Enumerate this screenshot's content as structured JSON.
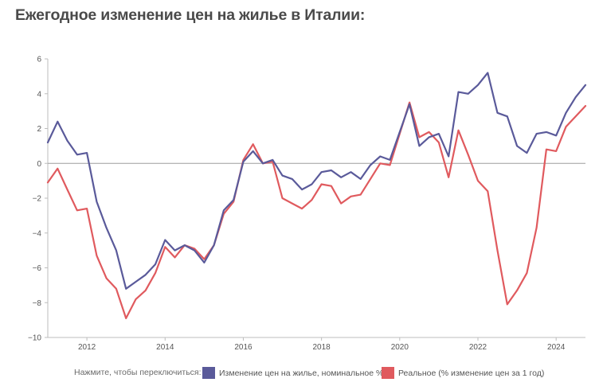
{
  "title": "Ежегодное изменение цен на жилье в Италии:",
  "legend": {
    "prompt": "Нажмите, чтобы переключиться:",
    "items": [
      {
        "label": "Изменение цен на жилье, номинальное %",
        "color": "#5a5a9a"
      },
      {
        "label": "Реальное (% изменение цен за 1 год)",
        "color": "#e05a5e"
      }
    ]
  },
  "chart_data": {
    "type": "line",
    "x_ticks": [
      "2012",
      "2014",
      "2016",
      "2018",
      "2020",
      "2022",
      "2024"
    ],
    "ylim": [
      -10,
      6
    ],
    "y_ticks": [
      "6",
      "4",
      "2",
      "0",
      "−2",
      "−4",
      "−6",
      "−8",
      "−10"
    ],
    "x_range": [
      2011.0,
      2024.75
    ],
    "series": [
      {
        "name": "Изменение цен на жилье, номинальное %",
        "color": "#5a5a9a",
        "x": [
          2011.0,
          2011.25,
          2011.5,
          2011.75,
          2012.0,
          2012.25,
          2012.5,
          2012.75,
          2013.0,
          2013.25,
          2013.5,
          2013.75,
          2014.0,
          2014.25,
          2014.5,
          2014.75,
          2015.0,
          2015.25,
          2015.5,
          2015.75,
          2016.0,
          2016.25,
          2016.5,
          2016.75,
          2017.0,
          2017.25,
          2017.5,
          2017.75,
          2018.0,
          2018.25,
          2018.5,
          2018.75,
          2019.0,
          2019.25,
          2019.5,
          2019.75,
          2020.0,
          2020.25,
          2020.5,
          2020.75,
          2021.0,
          2021.25,
          2021.5,
          2021.75,
          2022.0,
          2022.25,
          2022.5,
          2022.75,
          2023.0,
          2023.25,
          2023.5,
          2023.75,
          2024.0,
          2024.25,
          2024.5,
          2024.75
        ],
        "values": [
          1.2,
          2.4,
          1.3,
          0.5,
          0.6,
          -2.2,
          -3.7,
          -5.0,
          -7.2,
          -6.8,
          -6.4,
          -5.8,
          -4.4,
          -5.0,
          -4.7,
          -5.0,
          -5.7,
          -4.7,
          -2.7,
          -2.1,
          0.1,
          0.7,
          0.0,
          0.2,
          -0.7,
          -0.9,
          -1.5,
          -1.2,
          -0.5,
          -0.4,
          -0.8,
          -0.5,
          -0.9,
          -0.1,
          0.4,
          0.2,
          1.8,
          3.4,
          1.0,
          1.5,
          1.7,
          0.4,
          4.1,
          4.0,
          4.5,
          5.2,
          2.9,
          2.7,
          1.0,
          0.6,
          1.7,
          1.8,
          1.6,
          2.9,
          3.8,
          4.5
        ]
      },
      {
        "name": "Реальное (% изменение цен за 1 год)",
        "color": "#e05a5e",
        "x": [
          2011.0,
          2011.25,
          2011.5,
          2011.75,
          2012.0,
          2012.25,
          2012.5,
          2012.75,
          2013.0,
          2013.25,
          2013.5,
          2013.75,
          2014.0,
          2014.25,
          2014.5,
          2014.75,
          2015.0,
          2015.25,
          2015.5,
          2015.75,
          2016.0,
          2016.25,
          2016.5,
          2016.75,
          2017.0,
          2017.25,
          2017.5,
          2017.75,
          2018.0,
          2018.25,
          2018.5,
          2018.75,
          2019.0,
          2019.25,
          2019.5,
          2019.75,
          2020.0,
          2020.25,
          2020.5,
          2020.75,
          2021.0,
          2021.25,
          2021.5,
          2021.75,
          2022.0,
          2022.25,
          2022.5,
          2022.75,
          2023.0,
          2023.25,
          2023.5,
          2023.75,
          2024.0,
          2024.25,
          2024.5,
          2024.75
        ],
        "values": [
          -1.1,
          -0.3,
          -1.5,
          -2.7,
          -2.6,
          -5.3,
          -6.6,
          -7.2,
          -8.9,
          -7.8,
          -7.3,
          -6.3,
          -4.8,
          -5.4,
          -4.7,
          -4.9,
          -5.5,
          -4.7,
          -2.9,
          -2.2,
          0.2,
          1.1,
          0.0,
          0.1,
          -2.0,
          -2.3,
          -2.6,
          -2.1,
          -1.2,
          -1.3,
          -2.3,
          -1.9,
          -1.8,
          -0.9,
          0.0,
          -0.1,
          1.7,
          3.5,
          1.5,
          1.8,
          1.2,
          -0.8,
          1.9,
          0.5,
          -1.0,
          -1.6,
          -5.0,
          -8.1,
          -7.3,
          -6.3,
          -3.7,
          0.8,
          0.7,
          2.1,
          2.7,
          3.3
        ]
      }
    ]
  }
}
